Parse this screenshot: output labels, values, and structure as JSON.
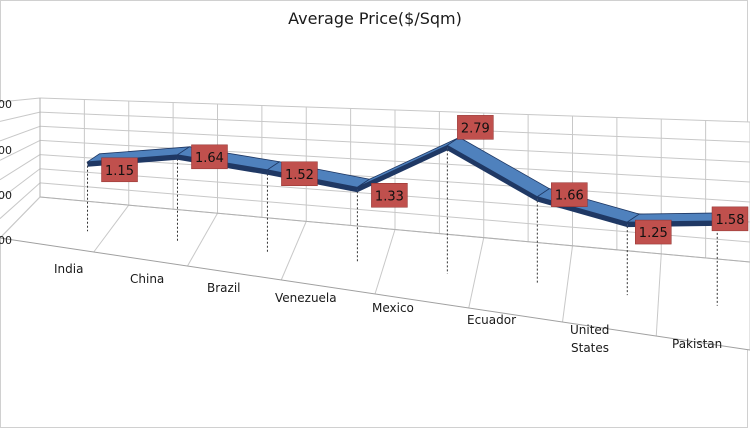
{
  "chart_data": {
    "type": "line",
    "title": "Average Price($/Sqm)",
    "categories": [
      "India",
      "China",
      "Brazil",
      "Venezuela",
      "Mexico",
      "Ecuador",
      "United States",
      "Pakistan"
    ],
    "values": [
      1.15,
      1.64,
      1.52,
      1.33,
      2.79,
      1.66,
      1.25,
      1.58
    ],
    "data_labels": [
      "1.15",
      "1.64",
      "1.52",
      "1.33",
      "2.79",
      "1.66",
      "1.25",
      "1.58"
    ],
    "y_tick_labels": [
      "00",
      "00",
      "00",
      "00"
    ],
    "style": "3d-line",
    "grid": true,
    "legend": "none",
    "colors": {
      "ribbon_top": "#4f81bd",
      "ribbon_side": "#1f3864",
      "label_box": "#c0504d",
      "grid": "#c8c8c8"
    }
  }
}
